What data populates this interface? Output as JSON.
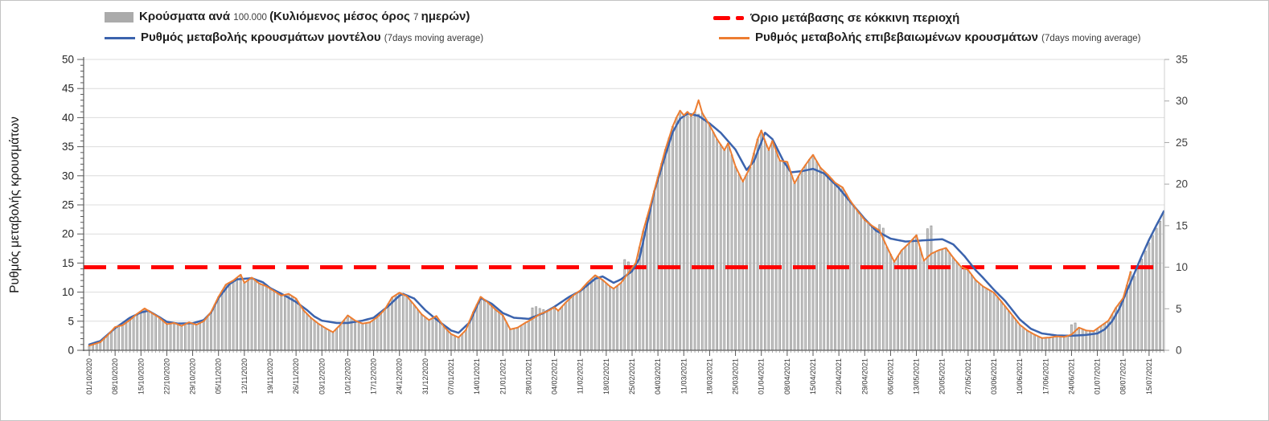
{
  "legend": {
    "cases": {
      "part1": "Κρούσματα ανά ",
      "part2": "100.000 ",
      "part3": "(Κυλιόμενος μέσος όρος ",
      "part4": "7 ",
      "part5": "ημερών)"
    },
    "model": {
      "label": "Ρυθμός μεταβολής κρουσμάτων μοντέλου ",
      "suffix": "(7days moving average)"
    },
    "threshold": {
      "label": "Όριο μετάβασης σε κόκκινη περιοχή"
    },
    "confirmed": {
      "label": "Ρυθμός μεταβολής επιβεβαιωμένων κρουσμάτων ",
      "suffix": "(7days moving average)"
    }
  },
  "chart_data": {
    "type": "bar+line combo, dual y-axis",
    "title": "",
    "left_axis": {
      "title": "Ρυθμός μεταβολής κρουσμάτων",
      "min": 0,
      "max": 50,
      "step": 5,
      "ticks": [
        0,
        5,
        10,
        15,
        20,
        25,
        30,
        35,
        40,
        45,
        50
      ]
    },
    "right_axis": {
      "min": 0,
      "max": 35,
      "step": 5,
      "ticks": [
        0,
        5,
        10,
        15,
        20,
        25,
        30,
        35
      ]
    },
    "x_start_date": "01/10/2020",
    "x_tick_labels": [
      "01/10/2020",
      "08/10/2020",
      "15/10/2020",
      "22/10/2020",
      "29/10/2020",
      "05/11/2020",
      "12/11/2020",
      "19/11/2020",
      "26/11/2020",
      "03/12/2020",
      "10/12/2020",
      "17/12/2020",
      "24/12/2020",
      "31/12/2020",
      "07/01/2021",
      "14/01/2021",
      "21/01/2021",
      "28/01/2021",
      "04/02/2021",
      "11/02/2021",
      "18/02/2021",
      "25/02/2021",
      "04/03/2021",
      "11/03/2021",
      "18/03/2021",
      "25/03/2021",
      "01/04/2021",
      "08/04/2021",
      "15/04/2021",
      "22/04/2021",
      "29/04/2021",
      "06/05/2021",
      "13/05/2021",
      "20/05/2021",
      "27/05/2021",
      "03/06/2021",
      "10/06/2021",
      "17/06/2021",
      "24/06/2021",
      "01/07/2021",
      "08/07/2021",
      "15/07/2021"
    ],
    "days_total": 292,
    "grid": "horizontal, every 5 left-axis units",
    "legend_position": "top",
    "threshold": {
      "name": "Όριο μετάβασης σε κόκκινη περιοχή",
      "right_axis_value": 10,
      "left_axis_value": 14.286,
      "color": "#ff0000"
    },
    "series": [
      {
        "name": "Ρυθμός μεταβολής κρουσμάτων μοντέλου (7days moving average)",
        "type": "line",
        "color": "#3b63ad",
        "axis": "left",
        "anchors": [
          [
            0,
            1.0
          ],
          [
            3,
            1.6
          ],
          [
            7,
            3.8
          ],
          [
            11,
            5.6
          ],
          [
            14,
            6.5
          ],
          [
            16,
            6.8
          ],
          [
            19,
            5.7
          ],
          [
            21,
            4.9
          ],
          [
            24,
            4.6
          ],
          [
            28,
            4.65
          ],
          [
            31,
            5.2
          ],
          [
            33,
            6.5
          ],
          [
            35,
            9.0
          ],
          [
            38,
            11.4
          ],
          [
            40,
            12.2
          ],
          [
            44,
            12.4
          ],
          [
            47,
            11.7
          ],
          [
            49,
            10.7
          ],
          [
            53,
            9.4
          ],
          [
            56,
            8.3
          ],
          [
            59,
            6.9
          ],
          [
            61,
            5.8
          ],
          [
            63,
            5.1
          ],
          [
            67,
            4.7
          ],
          [
            70,
            4.7
          ],
          [
            74,
            5.1
          ],
          [
            77,
            5.6
          ],
          [
            81,
            7.6
          ],
          [
            84,
            9.4
          ],
          [
            85,
            9.7
          ],
          [
            88,
            8.9
          ],
          [
            91,
            6.9
          ],
          [
            94,
            5.3
          ],
          [
            98,
            3.4
          ],
          [
            100,
            3.0
          ],
          [
            103,
            4.8
          ],
          [
            106,
            9.0
          ],
          [
            109,
            8.0
          ],
          [
            112,
            6.4
          ],
          [
            115,
            5.6
          ],
          [
            119,
            5.4
          ],
          [
            123,
            6.4
          ],
          [
            126,
            7.5
          ],
          [
            130,
            9.2
          ],
          [
            133,
            10.2
          ],
          [
            137,
            12.3
          ],
          [
            139,
            12.7
          ],
          [
            142,
            11.6
          ],
          [
            144,
            12.2
          ],
          [
            147,
            13.6
          ],
          [
            149,
            15.8
          ],
          [
            151,
            21.5
          ],
          [
            153,
            27.3
          ],
          [
            156,
            33.5
          ],
          [
            158,
            37.5
          ],
          [
            160,
            39.8
          ],
          [
            162,
            40.7
          ],
          [
            165,
            40.3
          ],
          [
            168,
            39.0
          ],
          [
            171,
            37.4
          ],
          [
            175,
            34.5
          ],
          [
            178,
            31.0
          ],
          [
            180,
            32.5
          ],
          [
            183,
            37.4
          ],
          [
            185,
            36.3
          ],
          [
            188,
            32.5
          ],
          [
            190,
            30.6
          ],
          [
            193,
            30.8
          ],
          [
            196,
            31.2
          ],
          [
            199,
            30.4
          ],
          [
            203,
            27.9
          ],
          [
            206,
            25.6
          ],
          [
            210,
            22.6
          ],
          [
            213,
            20.6
          ],
          [
            217,
            19.2
          ],
          [
            221,
            18.7
          ],
          [
            226,
            18.9
          ],
          [
            231,
            19.1
          ],
          [
            234,
            18.2
          ],
          [
            237,
            16.2
          ],
          [
            240,
            13.8
          ],
          [
            242,
            12.5
          ],
          [
            245,
            10.4
          ],
          [
            248,
            8.5
          ],
          [
            252,
            5.3
          ],
          [
            255,
            3.7
          ],
          [
            258,
            2.9
          ],
          [
            262,
            2.55
          ],
          [
            266,
            2.5
          ],
          [
            270,
            2.65
          ],
          [
            273,
            2.9
          ],
          [
            275,
            3.6
          ],
          [
            277,
            5.0
          ],
          [
            279,
            7.2
          ],
          [
            281,
            10.2
          ],
          [
            283,
            13.2
          ],
          [
            285,
            16.2
          ],
          [
            287,
            19.0
          ],
          [
            289,
            21.5
          ],
          [
            291,
            23.9
          ]
        ]
      },
      {
        "name": "Ρυθμός μεταβολής επιβεβαιωμένων κρουσμάτων (7days moving average)",
        "type": "line",
        "color": "#ED7D31",
        "axis": "left",
        "last_day": 282,
        "anchors": [
          [
            0,
            0.8
          ],
          [
            3,
            1.4
          ],
          [
            5,
            2.6
          ],
          [
            7,
            4.0
          ],
          [
            9,
            4.3
          ],
          [
            11,
            5.2
          ],
          [
            13,
            6.3
          ],
          [
            15,
            7.2
          ],
          [
            17,
            6.4
          ],
          [
            19,
            5.6
          ],
          [
            21,
            4.5
          ],
          [
            23,
            4.7
          ],
          [
            25,
            4.2
          ],
          [
            27,
            4.8
          ],
          [
            29,
            4.4
          ],
          [
            31,
            5.0
          ],
          [
            33,
            6.6
          ],
          [
            35,
            9.2
          ],
          [
            37,
            11.3
          ],
          [
            39,
            12.0
          ],
          [
            41,
            13.0
          ],
          [
            42,
            11.6
          ],
          [
            44,
            12.5
          ],
          [
            46,
            11.5
          ],
          [
            48,
            11.0
          ],
          [
            50,
            10.2
          ],
          [
            52,
            9.4
          ],
          [
            54,
            9.7
          ],
          [
            56,
            8.9
          ],
          [
            58,
            6.9
          ],
          [
            60,
            5.6
          ],
          [
            62,
            4.6
          ],
          [
            64,
            3.8
          ],
          [
            66,
            3.1
          ],
          [
            68,
            4.4
          ],
          [
            70,
            6.0
          ],
          [
            72,
            5.1
          ],
          [
            74,
            4.6
          ],
          [
            76,
            4.8
          ],
          [
            78,
            5.7
          ],
          [
            80,
            7.0
          ],
          [
            82,
            9.1
          ],
          [
            84,
            9.9
          ],
          [
            86,
            9.3
          ],
          [
            88,
            7.8
          ],
          [
            90,
            6.2
          ],
          [
            92,
            5.2
          ],
          [
            94,
            5.9
          ],
          [
            96,
            4.1
          ],
          [
            98,
            2.8
          ],
          [
            100,
            2.2
          ],
          [
            102,
            3.5
          ],
          [
            104,
            6.6
          ],
          [
            106,
            9.2
          ],
          [
            108,
            8.2
          ],
          [
            110,
            7.0
          ],
          [
            112,
            6.0
          ],
          [
            114,
            3.6
          ],
          [
            116,
            3.9
          ],
          [
            118,
            4.7
          ],
          [
            120,
            5.4
          ],
          [
            122,
            6.2
          ],
          [
            124,
            6.7
          ],
          [
            126,
            7.4
          ],
          [
            127,
            6.8
          ],
          [
            129,
            8.2
          ],
          [
            131,
            9.4
          ],
          [
            133,
            10.3
          ],
          [
            135,
            11.7
          ],
          [
            137,
            12.9
          ],
          [
            139,
            12.1
          ],
          [
            141,
            11.0
          ],
          [
            142,
            10.6
          ],
          [
            144,
            11.6
          ],
          [
            146,
            13.3
          ],
          [
            148,
            15.0
          ],
          [
            150,
            20.5
          ],
          [
            152,
            25.0
          ],
          [
            154,
            29.8
          ],
          [
            156,
            34.5
          ],
          [
            158,
            38.5
          ],
          [
            159,
            40.0
          ],
          [
            160,
            41.2
          ],
          [
            161,
            40.4
          ],
          [
            162,
            41.0
          ],
          [
            163,
            40.3
          ],
          [
            164,
            41.0
          ],
          [
            165,
            43.0
          ],
          [
            166,
            40.8
          ],
          [
            168,
            38.7
          ],
          [
            170,
            36.3
          ],
          [
            172,
            34.4
          ],
          [
            173,
            35.6
          ],
          [
            175,
            31.6
          ],
          [
            177,
            29.0
          ],
          [
            179,
            31.5
          ],
          [
            181,
            36.3
          ],
          [
            182,
            37.8
          ],
          [
            183,
            36.0
          ],
          [
            184,
            34.4
          ],
          [
            185,
            36.0
          ],
          [
            187,
            32.6
          ],
          [
            189,
            32.4
          ],
          [
            191,
            28.7
          ],
          [
            193,
            31.0
          ],
          [
            195,
            32.8
          ],
          [
            196,
            33.6
          ],
          [
            198,
            31.4
          ],
          [
            200,
            30.2
          ],
          [
            202,
            28.8
          ],
          [
            204,
            28.0
          ],
          [
            206,
            25.8
          ],
          [
            208,
            24.0
          ],
          [
            210,
            22.4
          ],
          [
            212,
            21.4
          ],
          [
            214,
            20.6
          ],
          [
            216,
            17.8
          ],
          [
            218,
            15.2
          ],
          [
            220,
            17.2
          ],
          [
            222,
            18.4
          ],
          [
            224,
            19.8
          ],
          [
            226,
            15.4
          ],
          [
            228,
            16.6
          ],
          [
            230,
            17.2
          ],
          [
            232,
            17.6
          ],
          [
            234,
            15.9
          ],
          [
            236,
            14.4
          ],
          [
            238,
            13.8
          ],
          [
            240,
            12.1
          ],
          [
            242,
            11.0
          ],
          [
            245,
            9.9
          ],
          [
            247,
            8.4
          ],
          [
            249,
            6.8
          ],
          [
            252,
            4.4
          ],
          [
            254,
            3.4
          ],
          [
            256,
            2.7
          ],
          [
            258,
            2.1
          ],
          [
            260,
            2.2
          ],
          [
            262,
            2.4
          ],
          [
            264,
            2.3
          ],
          [
            266,
            2.7
          ],
          [
            268,
            3.9
          ],
          [
            270,
            3.4
          ],
          [
            272,
            3.3
          ],
          [
            274,
            4.2
          ],
          [
            276,
            5.1
          ],
          [
            278,
            7.3
          ],
          [
            280,
            9.0
          ],
          [
            281,
            11.2
          ],
          [
            282,
            13.5
          ]
        ]
      },
      {
        "name": "Κρούσματα ανά 100.000 (Κυλιόμενος μέσος όρος 7 ημερών)",
        "type": "bar",
        "fill": "#c6c6c6",
        "stroke": "#838383",
        "axis": "left",
        "derive": "follows confirmed line daily values through day 282, then model line minus 0.5 to day 291",
        "overrides": {
          "120": 7.3,
          "121": 7.5,
          "122": 7.2,
          "123": 7.0,
          "145": 15.6,
          "146": 15.2,
          "165": 40.6,
          "214": 21.6,
          "215": 21.0,
          "227": 20.9,
          "228": 21.4,
          "266": 4.4,
          "267": 4.7
        }
      }
    ],
    "colors": {
      "bar_fill": "#c6c6c6",
      "bar_stroke": "#838383",
      "model_blue": "#3b63ad",
      "confirmed_orange": "#ED7D31",
      "threshold_red": "#ff0000",
      "gridline": "#dcdcdc",
      "axis": "#595959",
      "label": "#333333"
    }
  }
}
